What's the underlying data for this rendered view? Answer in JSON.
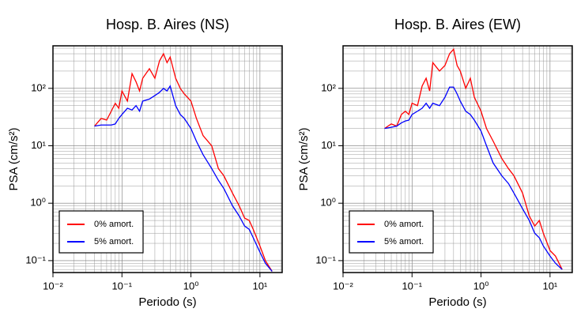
{
  "chart_data": [
    {
      "type": "line",
      "title": "Hosp. B. Aires (NS)",
      "x_label": "Periodo (s)",
      "y_label": "PSA (cm/s²)",
      "log_x": true,
      "log_y": true,
      "grid": true,
      "legend_position": "lower left",
      "xlim": [
        0.01,
        21
      ],
      "ylim": [
        0.062,
        550
      ],
      "xticks": [
        {
          "value": 0.01,
          "label": "10⁻²"
        },
        {
          "value": 0.1,
          "label": "10⁻¹"
        },
        {
          "value": 1,
          "label": "10⁰"
        },
        {
          "value": 10,
          "label": "10¹"
        }
      ],
      "yticks": [
        {
          "value": 0.1,
          "label": "10⁻¹"
        },
        {
          "value": 1,
          "label": "10⁰"
        },
        {
          "value": 10,
          "label": "10¹"
        },
        {
          "value": 100,
          "label": "10²"
        }
      ],
      "x": [
        0.04,
        0.05,
        0.06,
        0.07,
        0.08,
        0.09,
        0.1,
        0.12,
        0.14,
        0.16,
        0.18,
        0.2,
        0.25,
        0.3,
        0.35,
        0.4,
        0.45,
        0.5,
        0.6,
        0.7,
        0.8,
        1,
        1.2,
        1.5,
        2,
        2.5,
        3,
        4,
        5,
        6,
        7,
        8,
        10,
        12,
        15
      ],
      "series": [
        {
          "name": "0% amort.",
          "color": "#ff0000",
          "values": [
            22,
            30,
            28,
            40,
            55,
            45,
            90,
            60,
            180,
            130,
            90,
            150,
            220,
            150,
            300,
            400,
            280,
            350,
            150,
            100,
            80,
            60,
            30,
            15,
            10,
            4,
            3,
            1.5,
            0.9,
            0.55,
            0.5,
            0.35,
            0.18,
            0.1,
            0.065
          ]
        },
        {
          "name": "5% amort.",
          "color": "#0000ff",
          "values": [
            22,
            23,
            23,
            23,
            24,
            30,
            35,
            45,
            42,
            50,
            40,
            60,
            65,
            75,
            85,
            100,
            90,
            110,
            50,
            35,
            30,
            20,
            12,
            7,
            4,
            2.5,
            1.8,
            0.9,
            0.6,
            0.4,
            0.35,
            0.25,
            0.14,
            0.09,
            0.065
          ]
        }
      ]
    },
    {
      "type": "line",
      "title": "Hosp. B. Aires (EW)",
      "x_label": "Periodo (s)",
      "y_label": "PSA (cm/s²)",
      "log_x": true,
      "log_y": true,
      "grid": true,
      "legend_position": "lower left",
      "xlim": [
        0.01,
        21
      ],
      "ylim": [
        0.062,
        550
      ],
      "xticks": [
        {
          "value": 0.01,
          "label": "10⁻²"
        },
        {
          "value": 0.1,
          "label": "10⁻¹"
        },
        {
          "value": 1,
          "label": "10⁰"
        },
        {
          "value": 10,
          "label": "10¹"
        }
      ],
      "yticks": [
        {
          "value": 0.1,
          "label": "10⁻¹"
        },
        {
          "value": 1,
          "label": "10⁰"
        },
        {
          "value": 10,
          "label": "10¹"
        },
        {
          "value": 100,
          "label": "10²"
        }
      ],
      "x": [
        0.04,
        0.05,
        0.06,
        0.07,
        0.08,
        0.09,
        0.1,
        0.12,
        0.14,
        0.16,
        0.18,
        0.2,
        0.25,
        0.3,
        0.35,
        0.4,
        0.45,
        0.5,
        0.6,
        0.7,
        0.8,
        1,
        1.2,
        1.5,
        2,
        2.5,
        3,
        4,
        5,
        6,
        7,
        8,
        10,
        12,
        15
      ],
      "series": [
        {
          "name": "0% amort.",
          "color": "#ff0000",
          "values": [
            20,
            24,
            22,
            35,
            40,
            35,
            55,
            50,
            110,
            150,
            90,
            280,
            200,
            250,
            400,
            480,
            250,
            200,
            100,
            150,
            70,
            40,
            20,
            12,
            6,
            4,
            3,
            1.5,
            0.6,
            0.4,
            0.5,
            0.3,
            0.15,
            0.12,
            0.07
          ]
        },
        {
          "name": "5% amort.",
          "color": "#0000ff",
          "values": [
            20,
            21,
            22,
            25,
            27,
            28,
            35,
            40,
            45,
            55,
            45,
            55,
            50,
            70,
            105,
            105,
            80,
            60,
            40,
            35,
            28,
            18,
            10,
            5,
            3,
            2.2,
            1.5,
            0.8,
            0.5,
            0.3,
            0.25,
            0.18,
            0.12,
            0.09,
            0.07
          ]
        }
      ]
    }
  ]
}
